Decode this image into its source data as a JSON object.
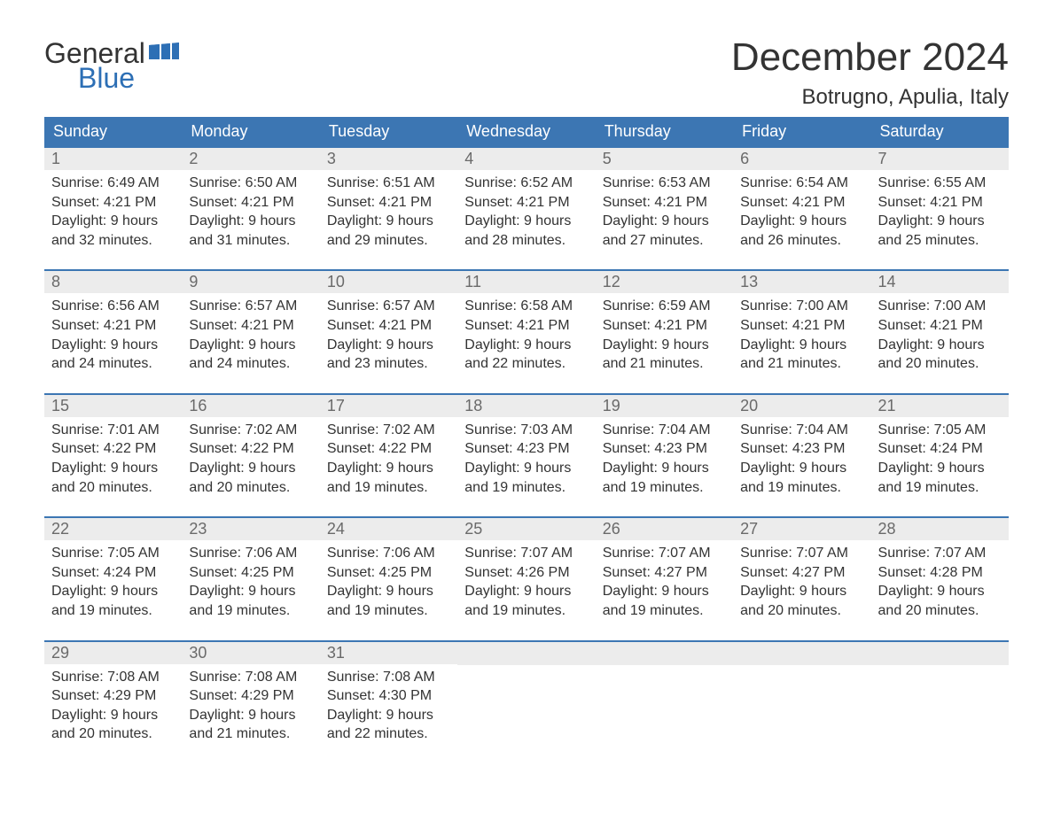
{
  "logo": {
    "general": "General",
    "blue": "Blue"
  },
  "header": {
    "month_title": "December 2024",
    "location": "Botrugno, Apulia, Italy"
  },
  "colors": {
    "header_bg": "#3c76b3",
    "header_text": "#ffffff",
    "daynum_bg": "#ececec",
    "daynum_text": "#6a6a6a",
    "body_text": "#333333",
    "logo_blue": "#2d6fb5"
  },
  "day_headers": [
    "Sunday",
    "Monday",
    "Tuesday",
    "Wednesday",
    "Thursday",
    "Friday",
    "Saturday"
  ],
  "weeks": [
    [
      {
        "n": "1",
        "sr": "Sunrise: 6:49 AM",
        "ss": "Sunset: 4:21 PM",
        "d1": "Daylight: 9 hours",
        "d2": "and 32 minutes."
      },
      {
        "n": "2",
        "sr": "Sunrise: 6:50 AM",
        "ss": "Sunset: 4:21 PM",
        "d1": "Daylight: 9 hours",
        "d2": "and 31 minutes."
      },
      {
        "n": "3",
        "sr": "Sunrise: 6:51 AM",
        "ss": "Sunset: 4:21 PM",
        "d1": "Daylight: 9 hours",
        "d2": "and 29 minutes."
      },
      {
        "n": "4",
        "sr": "Sunrise: 6:52 AM",
        "ss": "Sunset: 4:21 PM",
        "d1": "Daylight: 9 hours",
        "d2": "and 28 minutes."
      },
      {
        "n": "5",
        "sr": "Sunrise: 6:53 AM",
        "ss": "Sunset: 4:21 PM",
        "d1": "Daylight: 9 hours",
        "d2": "and 27 minutes."
      },
      {
        "n": "6",
        "sr": "Sunrise: 6:54 AM",
        "ss": "Sunset: 4:21 PM",
        "d1": "Daylight: 9 hours",
        "d2": "and 26 minutes."
      },
      {
        "n": "7",
        "sr": "Sunrise: 6:55 AM",
        "ss": "Sunset: 4:21 PM",
        "d1": "Daylight: 9 hours",
        "d2": "and 25 minutes."
      }
    ],
    [
      {
        "n": "8",
        "sr": "Sunrise: 6:56 AM",
        "ss": "Sunset: 4:21 PM",
        "d1": "Daylight: 9 hours",
        "d2": "and 24 minutes."
      },
      {
        "n": "9",
        "sr": "Sunrise: 6:57 AM",
        "ss": "Sunset: 4:21 PM",
        "d1": "Daylight: 9 hours",
        "d2": "and 24 minutes."
      },
      {
        "n": "10",
        "sr": "Sunrise: 6:57 AM",
        "ss": "Sunset: 4:21 PM",
        "d1": "Daylight: 9 hours",
        "d2": "and 23 minutes."
      },
      {
        "n": "11",
        "sr": "Sunrise: 6:58 AM",
        "ss": "Sunset: 4:21 PM",
        "d1": "Daylight: 9 hours",
        "d2": "and 22 minutes."
      },
      {
        "n": "12",
        "sr": "Sunrise: 6:59 AM",
        "ss": "Sunset: 4:21 PM",
        "d1": "Daylight: 9 hours",
        "d2": "and 21 minutes."
      },
      {
        "n": "13",
        "sr": "Sunrise: 7:00 AM",
        "ss": "Sunset: 4:21 PM",
        "d1": "Daylight: 9 hours",
        "d2": "and 21 minutes."
      },
      {
        "n": "14",
        "sr": "Sunrise: 7:00 AM",
        "ss": "Sunset: 4:21 PM",
        "d1": "Daylight: 9 hours",
        "d2": "and 20 minutes."
      }
    ],
    [
      {
        "n": "15",
        "sr": "Sunrise: 7:01 AM",
        "ss": "Sunset: 4:22 PM",
        "d1": "Daylight: 9 hours",
        "d2": "and 20 minutes."
      },
      {
        "n": "16",
        "sr": "Sunrise: 7:02 AM",
        "ss": "Sunset: 4:22 PM",
        "d1": "Daylight: 9 hours",
        "d2": "and 20 minutes."
      },
      {
        "n": "17",
        "sr": "Sunrise: 7:02 AM",
        "ss": "Sunset: 4:22 PM",
        "d1": "Daylight: 9 hours",
        "d2": "and 19 minutes."
      },
      {
        "n": "18",
        "sr": "Sunrise: 7:03 AM",
        "ss": "Sunset: 4:23 PM",
        "d1": "Daylight: 9 hours",
        "d2": "and 19 minutes."
      },
      {
        "n": "19",
        "sr": "Sunrise: 7:04 AM",
        "ss": "Sunset: 4:23 PM",
        "d1": "Daylight: 9 hours",
        "d2": "and 19 minutes."
      },
      {
        "n": "20",
        "sr": "Sunrise: 7:04 AM",
        "ss": "Sunset: 4:23 PM",
        "d1": "Daylight: 9 hours",
        "d2": "and 19 minutes."
      },
      {
        "n": "21",
        "sr": "Sunrise: 7:05 AM",
        "ss": "Sunset: 4:24 PM",
        "d1": "Daylight: 9 hours",
        "d2": "and 19 minutes."
      }
    ],
    [
      {
        "n": "22",
        "sr": "Sunrise: 7:05 AM",
        "ss": "Sunset: 4:24 PM",
        "d1": "Daylight: 9 hours",
        "d2": "and 19 minutes."
      },
      {
        "n": "23",
        "sr": "Sunrise: 7:06 AM",
        "ss": "Sunset: 4:25 PM",
        "d1": "Daylight: 9 hours",
        "d2": "and 19 minutes."
      },
      {
        "n": "24",
        "sr": "Sunrise: 7:06 AM",
        "ss": "Sunset: 4:25 PM",
        "d1": "Daylight: 9 hours",
        "d2": "and 19 minutes."
      },
      {
        "n": "25",
        "sr": "Sunrise: 7:07 AM",
        "ss": "Sunset: 4:26 PM",
        "d1": "Daylight: 9 hours",
        "d2": "and 19 minutes."
      },
      {
        "n": "26",
        "sr": "Sunrise: 7:07 AM",
        "ss": "Sunset: 4:27 PM",
        "d1": "Daylight: 9 hours",
        "d2": "and 19 minutes."
      },
      {
        "n": "27",
        "sr": "Sunrise: 7:07 AM",
        "ss": "Sunset: 4:27 PM",
        "d1": "Daylight: 9 hours",
        "d2": "and 20 minutes."
      },
      {
        "n": "28",
        "sr": "Sunrise: 7:07 AM",
        "ss": "Sunset: 4:28 PM",
        "d1": "Daylight: 9 hours",
        "d2": "and 20 minutes."
      }
    ],
    [
      {
        "n": "29",
        "sr": "Sunrise: 7:08 AM",
        "ss": "Sunset: 4:29 PM",
        "d1": "Daylight: 9 hours",
        "d2": "and 20 minutes."
      },
      {
        "n": "30",
        "sr": "Sunrise: 7:08 AM",
        "ss": "Sunset: 4:29 PM",
        "d1": "Daylight: 9 hours",
        "d2": "and 21 minutes."
      },
      {
        "n": "31",
        "sr": "Sunrise: 7:08 AM",
        "ss": "Sunset: 4:30 PM",
        "d1": "Daylight: 9 hours",
        "d2": "and 22 minutes."
      },
      null,
      null,
      null,
      null
    ]
  ]
}
